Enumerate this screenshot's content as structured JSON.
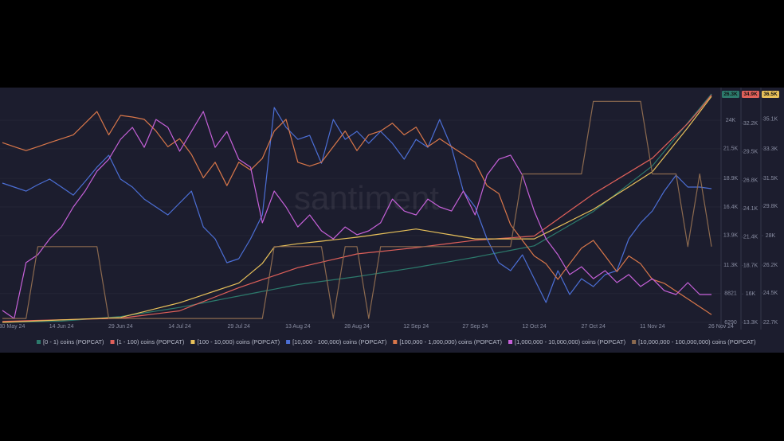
{
  "chart_data": {
    "type": "line",
    "watermark": "santiment",
    "categories": [
      "30 May 24",
      null,
      null,
      null,
      null,
      "14 Jun 24",
      null,
      null,
      null,
      null,
      "29 Jun 24",
      null,
      null,
      null,
      null,
      "14 Jul 24",
      null,
      null,
      null,
      null,
      "29 Jul 24",
      null,
      null,
      null,
      null,
      "13 Aug 24",
      null,
      null,
      null,
      null,
      "28 Aug 24",
      null,
      null,
      null,
      null,
      "12 Sep 24",
      null,
      null,
      null,
      null,
      "27 Sep 24",
      null,
      null,
      null,
      null,
      "12 Oct 24",
      null,
      null,
      null,
      null,
      "27 Oct 24",
      null,
      null,
      null,
      null,
      "11 Nov 24",
      null,
      null,
      null,
      null,
      "26 Nov 24"
    ],
    "ylim": [
      6290,
      26300
    ],
    "yticks": [
      6290,
      8821,
      {
        "value": 11300,
        "label": "11.3K"
      },
      {
        "value": 13900,
        "label": "13.9K"
      },
      {
        "value": 16400,
        "label": "16.4K"
      },
      {
        "value": 18900,
        "label": "18.9K"
      },
      {
        "value": 21500,
        "label": "21.5K"
      },
      {
        "value": 24000,
        "label": "24K"
      }
    ],
    "y_current_label": "26.3K",
    "y2lim": [
      13300,
      35000
    ],
    "y2ticks": [
      {
        "value": 13300,
        "label": "13.3K"
      },
      {
        "value": 16000,
        "label": "16K"
      },
      {
        "value": 18700,
        "label": "18.7K"
      },
      {
        "value": 21400,
        "label": "21.4K"
      },
      {
        "value": 24100,
        "label": "24.1K"
      },
      {
        "value": 26800,
        "label": "26.8K"
      },
      {
        "value": 29500,
        "label": "29.5K"
      },
      {
        "value": 32200,
        "label": "32.2K"
      }
    ],
    "y2_current_label": "34.9K",
    "y3lim": [
      22700,
      36650
    ],
    "y3ticks": [
      {
        "value": 22700,
        "label": "22.7K"
      },
      {
        "value": 24500,
        "label": "24.5K"
      },
      {
        "value": 26200,
        "label": "26.2K"
      },
      {
        "value": 28000,
        "label": "28K"
      },
      {
        "value": 29800,
        "label": "29.8K"
      },
      {
        "value": 31500,
        "label": "31.5K"
      },
      {
        "value": 33300,
        "label": "33.3K"
      },
      {
        "value": 35100,
        "label": "35.1K"
      }
    ],
    "y3_current_label": "36.5K",
    "grid": true,
    "series": [
      {
        "name": "[0 - 1) coins (POPCAT)",
        "color": "#2c7a6c",
        "axis": "y",
        "values": [
          6300,
          6320,
          6340,
          6360,
          6380,
          6400,
          6480,
          6560,
          6640,
          6720,
          6800,
          6960,
          7120,
          7280,
          7440,
          7600,
          7800,
          8000,
          8200,
          8400,
          8600,
          8800,
          9000,
          9200,
          9400,
          9600,
          9740,
          9880,
          10020,
          10160,
          10300,
          10460,
          10620,
          10780,
          10940,
          11100,
          11280,
          11460,
          11640,
          11820,
          12000,
          12200,
          12400,
          12600,
          12800,
          13000,
          13600,
          14200,
          14800,
          15400,
          16000,
          16800,
          17600,
          18400,
          19200,
          20000,
          21260,
          22520,
          23780,
          25040,
          26300
        ]
      },
      {
        "name": "[1 - 100) coins (POPCAT)",
        "color": "#e0605a",
        "axis": "y2",
        "values": [
          13400,
          13430,
          13460,
          13490,
          13520,
          13550,
          13580,
          13610,
          13640,
          13670,
          13700,
          13840,
          13980,
          14120,
          14260,
          14400,
          14840,
          15280,
          15720,
          16160,
          16600,
          16980,
          17360,
          17740,
          18120,
          18500,
          18760,
          19020,
          19280,
          19540,
          19800,
          19920,
          20040,
          20160,
          20280,
          20400,
          20540,
          20680,
          20820,
          20960,
          21100,
          21180,
          21260,
          21340,
          21420,
          21500,
          22300,
          23100,
          23900,
          24700,
          25500,
          26180,
          26860,
          27540,
          28220,
          28900,
          30000,
          31100,
          32200,
          33500,
          34900
        ]
      },
      {
        "name": "[100 - 10,000) coins (POPCAT)",
        "color": "#e8c15a",
        "axis": "y3",
        "values": [
          22700,
          22730,
          22760,
          22790,
          22820,
          22850,
          22880,
          22910,
          22940,
          22970,
          23000,
          23180,
          23360,
          23540,
          23720,
          23900,
          24140,
          24380,
          24620,
          24860,
          25100,
          25700,
          26300,
          27300,
          27400,
          27500,
          27580,
          27660,
          27740,
          27820,
          27900,
          28000,
          28100,
          28200,
          28300,
          28400,
          28280,
          28160,
          28040,
          27920,
          27800,
          27800,
          27800,
          27800,
          27800,
          27800,
          28160,
          28520,
          28880,
          29240,
          29600,
          30060,
          30520,
          30980,
          31440,
          31900,
          32800,
          33700,
          34600,
          35550,
          36500
        ]
      },
      {
        "name": "[10,000 - 100,000) coins (POPCAT)",
        "color": "#4c6fd6",
        "axis": "y",
        "values": [
          18490,
          18140,
          17790,
          18350,
          18840,
          18140,
          17440,
          18630,
          19880,
          20930,
          18840,
          18140,
          17090,
          16400,
          15700,
          16750,
          17790,
          14650,
          13610,
          11520,
          11870,
          13610,
          15700,
          25110,
          23370,
          22320,
          22670,
          20230,
          24060,
          22320,
          23020,
          21970,
          23020,
          21970,
          20580,
          22320,
          21620,
          24060,
          21620,
          17790,
          16400,
          13610,
          11520,
          10820,
          12210,
          10120,
          8030,
          10820,
          8730,
          10120,
          9430,
          10470,
          10820,
          13610,
          15000,
          16050,
          17790,
          19180,
          18140,
          18140,
          18000
        ]
      },
      {
        "name": "[100,000  - 1,000,000) coins (POPCAT)",
        "color": "#d9774a",
        "axis": "y2",
        "values": [
          30370,
          29990,
          29620,
          29990,
          30370,
          30740,
          31110,
          32220,
          33330,
          31110,
          32960,
          32810,
          32590,
          31480,
          29990,
          30740,
          29250,
          27030,
          28510,
          26290,
          28510,
          27770,
          28880,
          31480,
          32590,
          28510,
          28140,
          28510,
          29990,
          31480,
          29620,
          31110,
          31480,
          32220,
          31110,
          31850,
          29990,
          30740,
          29990,
          29250,
          28510,
          26290,
          25540,
          22580,
          21090,
          19610,
          18870,
          17380,
          18870,
          20350,
          21090,
          19610,
          18120,
          19610,
          18870,
          17380,
          17010,
          16270,
          15530,
          14780,
          14040
        ]
      },
      {
        "name": "[1,000,000 - 10,000,000) coins (POPCAT)",
        "color": "#c661d9",
        "axis": "y3",
        "values": [
          23430,
          22940,
          26350,
          26830,
          27800,
          28530,
          29750,
          30720,
          31930,
          32660,
          33880,
          34610,
          33390,
          35090,
          34610,
          33150,
          34360,
          35580,
          33390,
          34360,
          32660,
          32180,
          28780,
          30720,
          29750,
          28530,
          29260,
          28290,
          27800,
          28530,
          28050,
          28290,
          28780,
          30230,
          29500,
          29260,
          30230,
          29750,
          29500,
          30720,
          29260,
          31690,
          32660,
          32910,
          31690,
          29500,
          27800,
          26830,
          25620,
          26100,
          25370,
          25860,
          25130,
          25620,
          24890,
          25370,
          24640,
          24400,
          25130,
          24400,
          24400
        ]
      },
      {
        "name": "[10,000,000 - 100,000,000) coins (POPCAT)",
        "color": "#8c6a4f",
        "axis": "y2",
        "values": [
          13670,
          13670,
          13670,
          20500,
          20500,
          20500,
          20500,
          20500,
          20500,
          13670,
          13670,
          13670,
          13670,
          13670,
          13670,
          13670,
          13670,
          13670,
          13670,
          13670,
          13670,
          13670,
          13670,
          20500,
          20500,
          20500,
          20500,
          20500,
          13670,
          20500,
          20500,
          13670,
          20500,
          20500,
          20500,
          20500,
          20500,
          20500,
          20500,
          20500,
          20500,
          20500,
          20500,
          20500,
          27400,
          27400,
          27400,
          27400,
          27400,
          27400,
          34300,
          34300,
          34300,
          34300,
          34300,
          27400,
          27400,
          27400,
          20500,
          27400,
          20500
        ]
      }
    ]
  }
}
